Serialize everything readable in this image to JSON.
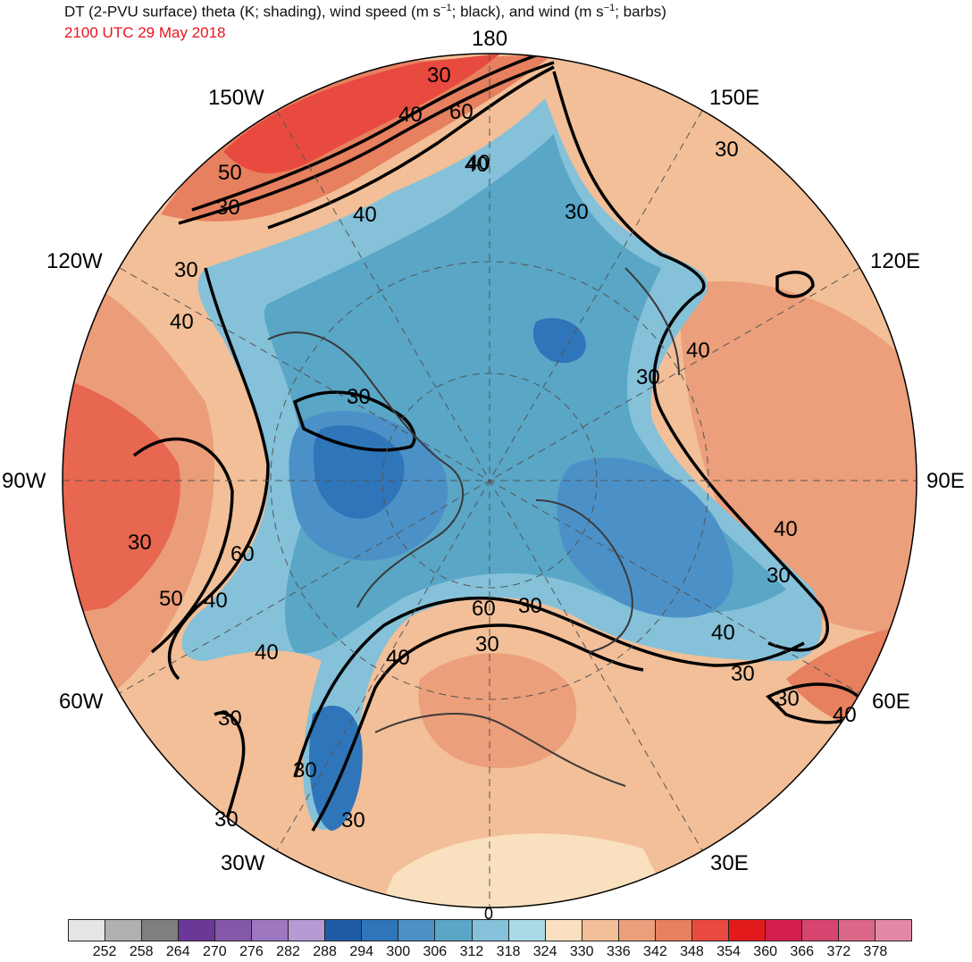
{
  "title": {
    "part1": "DT (2-PVU surface) theta (K; shading), wind speed (m s",
    "exp1": "−1",
    "part2": "; black), and wind (m s",
    "exp2": "−1",
    "part3": "; barbs)"
  },
  "valid_time": "2100 UTC 29 May 2018",
  "longitude_labels": {
    "top": "180",
    "upper_left": "150W",
    "upper_right": "150E",
    "left_upper": "120W",
    "right_upper": "120E",
    "left": "90W",
    "right": "90E",
    "left_lower": "60W",
    "right_lower": "60E",
    "lower_left": "30W",
    "lower_right": "30E",
    "bottom": "0"
  },
  "contour_labels": [
    "30",
    "40",
    "60",
    "30",
    "50",
    "40",
    "30",
    "30",
    "40",
    "30",
    "30",
    "40",
    "30",
    "60",
    "50",
    "40",
    "40",
    "30",
    "30",
    "30",
    "40",
    "40",
    "60",
    "30",
    "30",
    "30",
    "30",
    "40",
    "30",
    "40",
    "40",
    "40",
    "30",
    "30"
  ],
  "colorbar": {
    "colors": [
      "#e5e5e5",
      "#b0b0b0",
      "#7f7f7f",
      "#6b3898",
      "#8458a9",
      "#9d78c0",
      "#b59ad4",
      "#1e5ca8",
      "#2f75ba",
      "#4b91c8",
      "#59a6c7",
      "#85c1d9",
      "#a9dae6",
      "#f9e0be",
      "#f2bf98",
      "#ec9f7b",
      "#e6805f",
      "#e84a3f",
      "#e31a1c",
      "#d41f4e",
      "#d5456f",
      "#dc6688",
      "#e289a5"
    ],
    "ticks": [
      "252",
      "258",
      "264",
      "270",
      "276",
      "282",
      "288",
      "294",
      "300",
      "306",
      "312",
      "318",
      "324",
      "330",
      "336",
      "342",
      "348",
      "354",
      "360",
      "366",
      "372",
      "378"
    ]
  }
}
